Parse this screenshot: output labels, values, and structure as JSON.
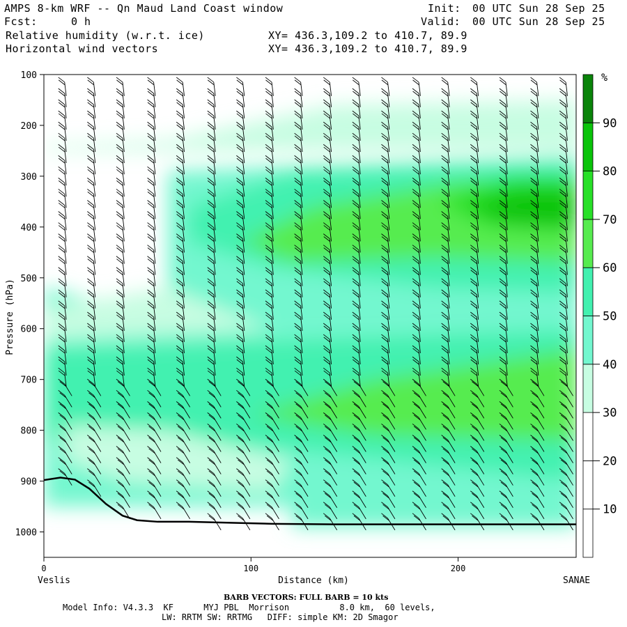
{
  "header": {
    "title": "AMPS 8-km WRF -- Qn Maud Land Coast window",
    "init_label": "Init:",
    "init_value": "00 UTC Sun 28 Sep 25",
    "fcst_label": "Fcst:",
    "fcst_value": "0 h",
    "valid_label": "Valid:",
    "valid_value": "00 UTC Sun 28 Sep 25",
    "field1": "Relative humidity (w.r.t. ice)",
    "field2": "Horizontal wind vectors",
    "xy1": "XY= 436.3,109.2 to 410.7, 89.9",
    "xy2": "XY= 436.3,109.2 to 410.7, 89.9"
  },
  "footer": {
    "barb_note": "BARB VECTORS:  FULL BARB = 10 kts",
    "model_info_1": "Model Info: V4.3.3  KF      MYJ PBL  Morrison          8.0 km,  60 levels,",
    "model_info_2": "LW: RRTM SW: RRTMG   DIFF: simple KM: 2D Smagor"
  },
  "colors": {
    "rh_30_40": "#c7fde2",
    "rh_40_50": "#73f7cf",
    "rh_50_60": "#42f1b0",
    "rh_60_70": "#57ec4f",
    "rh_70_80": "#28e028",
    "rh_80_90": "#0ac40a",
    "rh_90_100": "#0a840a",
    "terrain_line": "#000000",
    "barb_color": "#000000"
  },
  "chart_data": {
    "type": "heatmap",
    "title": "Relative humidity (w.r.t. ice)",
    "overlay": "Horizontal wind vectors (barbs)",
    "xlabel": "Distance (km)",
    "ylabel": "Pressure (hPa)",
    "x_start_label": "Veslis",
    "x_end_label": "SANAE",
    "xlim": [
      0,
      257
    ],
    "ylim": [
      1050,
      100
    ],
    "x_ticks": [
      0,
      100,
      200
    ],
    "y_ticks": [
      100,
      200,
      300,
      400,
      500,
      600,
      700,
      800,
      900,
      1000
    ],
    "colorbar_unit": "%",
    "colorbar_levels": [
      0,
      10,
      20,
      30,
      40,
      50,
      60,
      70,
      80,
      90,
      100
    ],
    "colorbar_tick_labels": [
      "10",
      "20",
      "30",
      "40",
      "50",
      "60",
      "70",
      "80",
      "90"
    ],
    "terrain_surface": {
      "x_km": [
        0,
        8,
        15,
        22,
        30,
        38,
        45,
        55,
        70,
        90,
        110,
        140,
        180,
        220,
        257
      ],
      "pressure_hPa": [
        898,
        893,
        897,
        915,
        945,
        968,
        977,
        980,
        980,
        982,
        984,
        985,
        985,
        985,
        985
      ]
    },
    "rh_regions_approx": [
      {
        "range_pct": "30-40",
        "x_km": [
          0,
          257
        ],
        "p_hPa": [
          150,
          250
        ]
      },
      {
        "range_pct": "50-60",
        "x_km": [
          60,
          257
        ],
        "p_hPa": [
          280,
          480
        ]
      },
      {
        "range_pct": "60-70",
        "x_km": [
          100,
          257
        ],
        "p_hPa": [
          300,
          460
        ]
      },
      {
        "range_pct": "70-80",
        "x_km": [
          190,
          257
        ],
        "p_hPa": [
          300,
          410
        ]
      },
      {
        "range_pct": "80-90",
        "x_km": [
          205,
          257
        ],
        "p_hPa": [
          330,
          400
        ]
      },
      {
        "range_pct": "60-70",
        "x_km": [
          100,
          257
        ],
        "p_hPa": [
          640,
          810
        ]
      },
      {
        "range_pct": "40-50",
        "x_km": [
          0,
          257
        ],
        "p_hPa": [
          520,
          950
        ]
      }
    ],
    "barb_columns_x_km": [
      10,
      24,
      38,
      53,
      67,
      82,
      96,
      110,
      124,
      138,
      152,
      166,
      181,
      195,
      209,
      223,
      238,
      252
    ]
  }
}
